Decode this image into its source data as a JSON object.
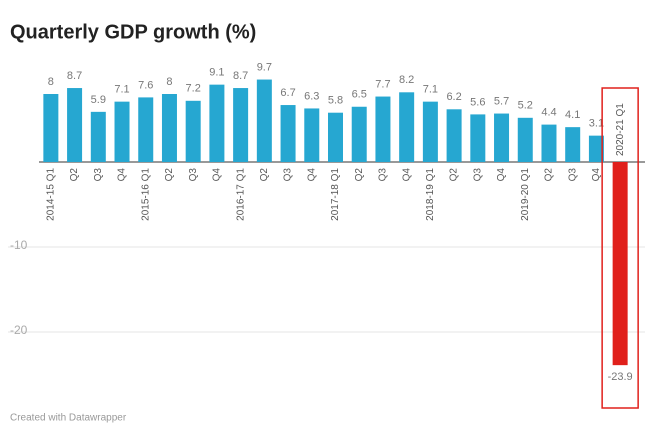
{
  "chart_data": {
    "type": "bar",
    "title": "Quarterly GDP growth (%)",
    "source": "Created with Datawrapper",
    "categories": [
      "2014-15 Q1",
      "Q2",
      "Q3",
      "Q4",
      "2015-16 Q1",
      "Q2",
      "Q3",
      "Q4",
      "2016-17 Q1",
      "Q2",
      "Q3",
      "Q4",
      "2017-18 Q1",
      "Q2",
      "Q3",
      "Q4",
      "2018-19 Q1",
      "Q2",
      "Q3",
      "Q4",
      "2019-20 Q1",
      "Q2",
      "Q3",
      "Q4",
      "2020-21 Q1"
    ],
    "values": [
      8,
      8.7,
      5.9,
      7.1,
      7.6,
      8,
      7.2,
      9.1,
      8.7,
      9.7,
      6.7,
      6.3,
      5.8,
      6.5,
      7.7,
      8.2,
      7.1,
      6.2,
      5.6,
      5.7,
      5.2,
      4.4,
      4.1,
      3.1,
      -23.9
    ],
    "color": "#26a7d1",
    "negative_color": "#e0201b",
    "ylim": [
      -26,
      11
    ],
    "yticks": [
      -20,
      -10
    ],
    "grid": true
  }
}
